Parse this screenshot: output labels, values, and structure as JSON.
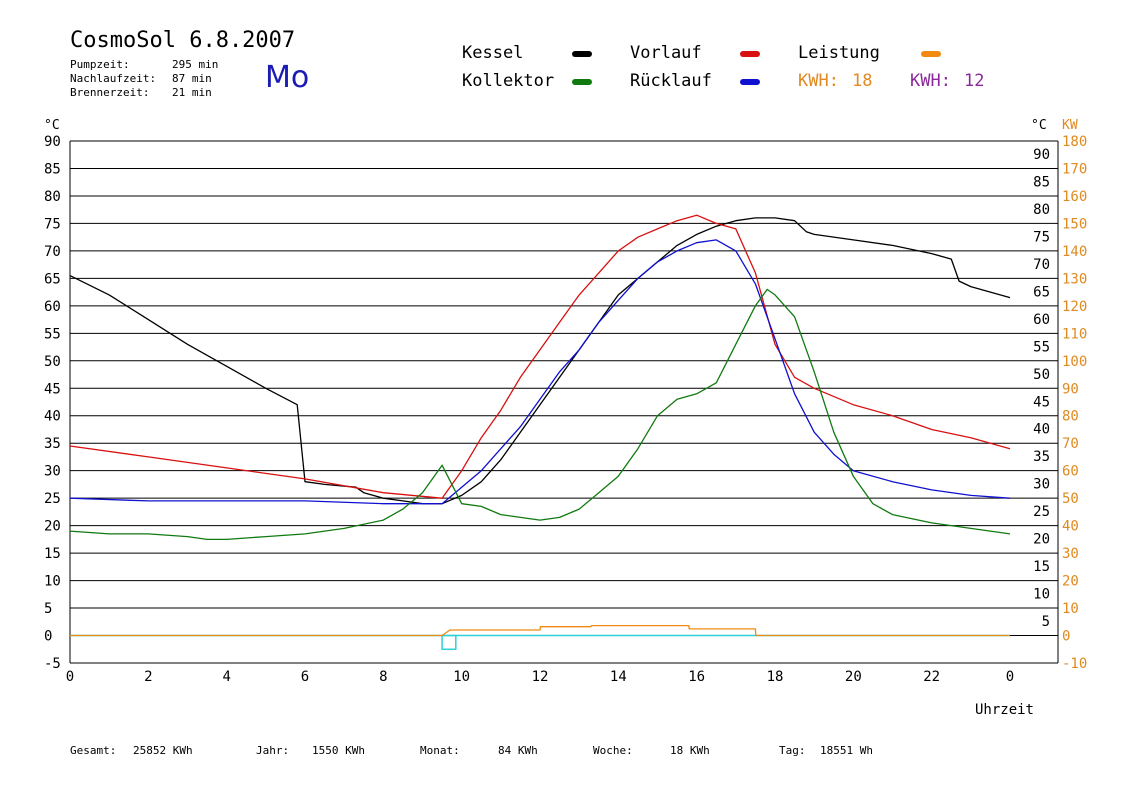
{
  "title": "CosmoSol 6.8.2007",
  "weekday": "Mo",
  "stats": [
    {
      "label": "Pumpzeit:",
      "value": "295 min"
    },
    {
      "label": "Nachlaufzeit:",
      "value": "87 min"
    },
    {
      "label": "Brennerzeit:",
      "value": "21 min"
    }
  ],
  "legend": {
    "kessel": "Kessel",
    "vorlauf": "Vorlauf",
    "leistung": "Leistung",
    "kollektor": "Kollektor",
    "ruecklauf": "Rücklauf",
    "kwh1_label": "KWH:",
    "kwh1_value": "18",
    "kwh2_label": "KWH:",
    "kwh2_value": "12"
  },
  "colors": {
    "kessel": "#000000",
    "vorlauf": "#d81010",
    "ruecklauf": "#1010d0",
    "kollektor": "#107a10",
    "leistung": "#f08a10",
    "kwh2": "#8a2a9a",
    "axis_right": "#e08a20",
    "baseline": "#30d0d8"
  },
  "bottom_stats": {
    "gesamt_label": "Gesamt:",
    "gesamt_value": "25852 KWh",
    "jahr_label": "Jahr:",
    "jahr_value": "1550 KWh",
    "monat_label": "Monat:",
    "monat_value": "84 KWh",
    "woche_label": "Woche:",
    "woche_value": "18 KWh",
    "tag_label": "Tag:",
    "tag_value": "18551 Wh"
  },
  "chart_data": {
    "type": "line",
    "xlabel": "Uhrzeit",
    "ylabel_left": "°C",
    "ylabel_right": "°C",
    "ylabel_right2": "KW",
    "xlim": [
      0,
      24
    ],
    "ylim": [
      -5,
      90
    ],
    "ylim_kw": [
      -10,
      180
    ],
    "grid": true,
    "x_ticks": [
      "0",
      "2",
      "4",
      "6",
      "8",
      "10",
      "12",
      "14",
      "16",
      "18",
      "20",
      "22",
      "0"
    ],
    "y_ticks_left": [
      "90",
      "85",
      "80",
      "75",
      "70",
      "65",
      "60",
      "55",
      "50",
      "45",
      "40",
      "35",
      "30",
      "25",
      "20",
      "15",
      "10",
      "5",
      "0",
      "-5"
    ],
    "y_ticks_right": [
      "90",
      "85",
      "80",
      "75",
      "70",
      "65",
      "60",
      "55",
      "50",
      "45",
      "40",
      "35",
      "30",
      "25",
      "20",
      "15",
      "10",
      "5"
    ],
    "y_ticks_kw": [
      "180",
      "170",
      "160",
      "150",
      "140",
      "130",
      "120",
      "110",
      "100",
      "90",
      "80",
      "70",
      "60",
      "50",
      "40",
      "30",
      "20",
      "10",
      "0",
      "-10"
    ],
    "series": [
      {
        "name": "Kessel",
        "key": "kessel",
        "x": [
          0,
          1,
          2,
          3,
          4,
          5,
          5.8,
          5.9,
          6.0,
          6.5,
          7.3,
          7.5,
          8.0,
          8.5,
          9.0,
          9.5,
          10.0,
          10.5,
          11.0,
          11.5,
          12.0,
          12.5,
          13.0,
          13.5,
          14.0,
          14.5,
          15.0,
          15.5,
          16.0,
          16.5,
          17.0,
          17.5,
          18.0,
          18.5,
          18.8,
          19.0,
          20.0,
          21.0,
          22.0,
          22.5,
          22.7,
          23.0,
          23.5,
          24.0
        ],
        "y": [
          65.5,
          62,
          57.5,
          53,
          49,
          45,
          42,
          35,
          28,
          27.5,
          27,
          26,
          25,
          24.5,
          24,
          24,
          25.5,
          28,
          32,
          37,
          42,
          47,
          52,
          57,
          62,
          65,
          68,
          71,
          73,
          74.5,
          75.5,
          76,
          76,
          75.5,
          73.5,
          73,
          72,
          71,
          69.5,
          68.5,
          64.5,
          63.5,
          62.5,
          61.5
        ]
      },
      {
        "name": "Vorlauf",
        "key": "vorlauf",
        "x": [
          0,
          2,
          4,
          6,
          8,
          9.5,
          10,
          10.5,
          11,
          11.5,
          12,
          12.5,
          13,
          13.5,
          14,
          14.5,
          15,
          15.5,
          16,
          16.5,
          17,
          17.5,
          18,
          18.5,
          19,
          20,
          21,
          22,
          23,
          24
        ],
        "y": [
          34.5,
          32.5,
          30.5,
          28.5,
          26,
          25,
          30,
          36,
          41,
          47,
          52,
          57,
          62,
          66,
          70,
          72.5,
          74,
          75.5,
          76.5,
          75,
          74,
          66,
          53,
          47,
          45,
          42,
          40,
          37.5,
          36,
          34
        ]
      },
      {
        "name": "Rücklauf",
        "key": "ruecklauf",
        "x": [
          0,
          2,
          4,
          6,
          8,
          9.5,
          10,
          10.5,
          11,
          11.5,
          12,
          12.5,
          13,
          13.5,
          14,
          14.5,
          15,
          15.5,
          16,
          16.5,
          17,
          17.5,
          18,
          18.5,
          19,
          19.5,
          20,
          21,
          22,
          23,
          24
        ],
        "y": [
          25,
          24.5,
          24.5,
          24.5,
          24,
          24,
          27,
          30,
          34,
          38,
          43,
          48,
          52,
          57,
          61,
          65,
          68,
          70,
          71.5,
          72,
          70,
          64,
          54,
          44,
          37,
          33,
          30,
          28,
          26.5,
          25.5,
          25
        ]
      },
      {
        "name": "Kollektor",
        "key": "kollektor",
        "x": [
          0,
          1,
          2,
          3,
          3.5,
          4,
          5,
          6,
          7,
          8,
          8.5,
          9,
          9.5,
          10,
          10.5,
          11,
          11.5,
          12,
          12.5,
          13,
          13.5,
          14,
          14.5,
          15,
          15.5,
          16,
          16.5,
          17,
          17.5,
          17.8,
          18,
          18.5,
          19,
          19.5,
          20,
          20.5,
          21,
          22,
          23,
          24
        ],
        "y": [
          19,
          18.5,
          18.5,
          18,
          17.5,
          17.5,
          18,
          18.5,
          19.5,
          21,
          23,
          26,
          31,
          24,
          23.5,
          22,
          21.5,
          21,
          21.5,
          23,
          26,
          29,
          34,
          40,
          43,
          44,
          46,
          53,
          60,
          63,
          62,
          58,
          48,
          37,
          29,
          24,
          22,
          20.5,
          19.5,
          18.5
        ]
      },
      {
        "name": "Leistung",
        "key": "leistung",
        "x": [
          0,
          9.5,
          9.7,
          12,
          12.01,
          13.3,
          13.31,
          15.8,
          15.81,
          17.5,
          17.51,
          24
        ],
        "y": [
          0,
          0,
          1,
          1,
          1.6,
          1.6,
          1.8,
          1.8,
          1.2,
          1.2,
          0,
          0
        ]
      }
    ]
  }
}
